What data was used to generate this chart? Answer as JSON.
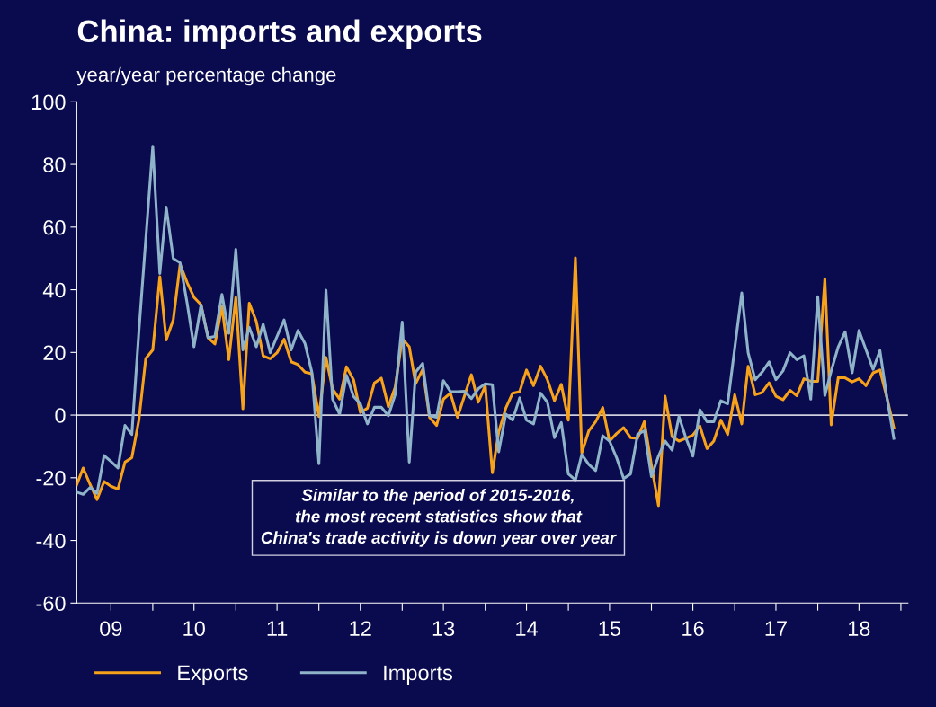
{
  "chart_data": {
    "type": "line",
    "title": "China: imports and exports",
    "ylabel": "year/year percentage change",
    "annotations": [
      "Similar to the period of 2015-2016,\nthe most recent statistics show that\nChina's trade activity is down year over year"
    ],
    "x": [
      "2009-02",
      "2009-03",
      "2009-04",
      "2009-05",
      "2009-06",
      "2009-07",
      "2009-08",
      "2009-09",
      "2009-10",
      "2009-11",
      "2009-12",
      "2010-01",
      "2010-02",
      "2010-03",
      "2010-04",
      "2010-05",
      "2010-06",
      "2010-07",
      "2010-08",
      "2010-09",
      "2010-10",
      "2010-11",
      "2010-12",
      "2011-01",
      "2011-02",
      "2011-03",
      "2011-04",
      "2011-05",
      "2011-06",
      "2011-07",
      "2011-08",
      "2011-09",
      "2011-10",
      "2011-11",
      "2011-12",
      "2012-01",
      "2012-02",
      "2012-03",
      "2012-04",
      "2012-05",
      "2012-06",
      "2012-07",
      "2012-08",
      "2012-09",
      "2012-10",
      "2012-11",
      "2012-12",
      "2013-01",
      "2013-02",
      "2013-03",
      "2013-04",
      "2013-05",
      "2013-06",
      "2013-07",
      "2013-08",
      "2013-09",
      "2013-10",
      "2013-11",
      "2013-12",
      "2014-01",
      "2014-02",
      "2014-03",
      "2014-04",
      "2014-05",
      "2014-06",
      "2014-07",
      "2014-08",
      "2014-09",
      "2014-10",
      "2014-11",
      "2014-12",
      "2015-01",
      "2015-02",
      "2015-03",
      "2015-04",
      "2015-05",
      "2015-06",
      "2015-07",
      "2015-08",
      "2015-09",
      "2015-10",
      "2015-11",
      "2015-12",
      "2016-01",
      "2016-02",
      "2016-03",
      "2016-04",
      "2016-05",
      "2016-06",
      "2016-07",
      "2016-08",
      "2016-09",
      "2016-10",
      "2016-11",
      "2016-12",
      "2017-01",
      "2017-02",
      "2017-03",
      "2017-04",
      "2017-05",
      "2017-06",
      "2017-07",
      "2017-08",
      "2017-09",
      "2017-10",
      "2017-11",
      "2017-12",
      "2018-01",
      "2018-02",
      "2018-03",
      "2018-04",
      "2018-05",
      "2018-06",
      "2018-07",
      "2018-08",
      "2018-09",
      "2018-10",
      "2018-11",
      "2018-12"
    ],
    "series": [
      {
        "name": "Exports",
        "color": "#f7a21b",
        "values": [
          -22.2,
          -16.9,
          -22.2,
          -27.0,
          -21.2,
          -22.7,
          -23.6,
          -15.0,
          -13.6,
          -1.6,
          18.0,
          20.8,
          44.2,
          24.0,
          30.4,
          48.1,
          42.3,
          37.6,
          35.2,
          24.7,
          22.7,
          34.7,
          17.7,
          37.6,
          2.0,
          35.7,
          29.9,
          18.9,
          18.0,
          19.9,
          24.2,
          17.0,
          16.1,
          13.7,
          13.2,
          -0.5,
          18.4,
          8.4,
          5.1,
          15.4,
          11.3,
          0.8,
          2.2,
          10.3,
          11.8,
          2.7,
          8.9,
          24.4,
          21.8,
          10.0,
          14.6,
          -0.7,
          -3.3,
          5.1,
          7.0,
          -0.7,
          6.0,
          12.9,
          4.1,
          9.4,
          -18.4,
          -5.4,
          2.2,
          7.0,
          7.5,
          14.4,
          9.4,
          15.6,
          11.3,
          4.6,
          9.8,
          -1.6,
          50.2,
          -12.1,
          -5.0,
          -2.1,
          2.4,
          -8.3,
          -5.9,
          -4.0,
          -7.2,
          -7.4,
          -2.1,
          -16.0,
          -28.9,
          6.0,
          -6.9,
          -8.3,
          -7.4,
          -6.4,
          -3.5,
          -10.7,
          -8.3,
          -1.6,
          -6.2,
          6.5,
          -2.8,
          15.6,
          6.5,
          7.2,
          10.3,
          6.0,
          4.9,
          7.9,
          6.2,
          11.6,
          10.8,
          10.8,
          43.5,
          -3.1,
          12.0,
          11.9,
          10.6,
          11.6,
          9.4,
          13.5,
          14.4,
          5.5,
          -4.0
        ]
      },
      {
        "name": "Imports",
        "color": "#8fb3c8",
        "values": [
          -24.6,
          -25.3,
          -23.1,
          -25.0,
          -12.9,
          -14.8,
          -16.9,
          -3.3,
          -6.2,
          26.7,
          55.9,
          85.8,
          45.2,
          66.4,
          50.0,
          48.6,
          35.7,
          21.8,
          35.2,
          24.7,
          25.1,
          38.5,
          26.1,
          52.9,
          20.8,
          28.0,
          21.8,
          29.0,
          19.9,
          25.1,
          30.4,
          20.8,
          27.0,
          22.8,
          13.7,
          -15.5,
          39.9,
          5.1,
          0.3,
          12.7,
          6.0,
          3.6,
          -2.8,
          2.5,
          2.5,
          -0.2,
          6.5,
          29.7,
          -15.0,
          13.7,
          16.5,
          -0.2,
          -0.7,
          11.0,
          7.5,
          7.5,
          7.6,
          5.3,
          8.4,
          10.0,
          9.7,
          -11.7,
          0.3,
          -1.6,
          5.5,
          -1.6,
          -2.8,
          7.0,
          4.1,
          -7.2,
          -2.4,
          -18.8,
          -20.7,
          -12.6,
          -15.8,
          -17.7,
          -6.6,
          -8.3,
          -13.6,
          -20.3,
          -18.8,
          -6.2,
          -5.0,
          -19.6,
          -13.1,
          -8.3,
          -11.2,
          -0.5,
          -7.4,
          -13.1,
          1.7,
          -2.1,
          -2.1,
          4.6,
          3.6,
          21.3,
          39.0,
          19.9,
          11.3,
          13.7,
          17.0,
          11.3,
          14.1,
          19.9,
          17.7,
          18.9,
          5.1,
          37.8,
          6.2,
          14.1,
          21.8,
          26.6,
          13.5,
          27.0,
          20.8,
          14.6,
          20.6,
          5.5,
          -7.4
        ]
      }
    ],
    "xlim": [
      "2009-02",
      "2019-02"
    ],
    "xticks": [
      {
        "value": "2009-07",
        "label": "09"
      },
      {
        "value": "2010-01",
        "label": null
      },
      {
        "value": "2010-07",
        "label": "10"
      },
      {
        "value": "2011-01",
        "label": null
      },
      {
        "value": "2011-07",
        "label": "11"
      },
      {
        "value": "2012-01",
        "label": null
      },
      {
        "value": "2012-07",
        "label": "12"
      },
      {
        "value": "2013-01",
        "label": null
      },
      {
        "value": "2013-07",
        "label": "13"
      },
      {
        "value": "2014-01",
        "label": null
      },
      {
        "value": "2014-07",
        "label": "14"
      },
      {
        "value": "2015-01",
        "label": null
      },
      {
        "value": "2015-07",
        "label": "15"
      },
      {
        "value": "2016-01",
        "label": null
      },
      {
        "value": "2016-07",
        "label": "16"
      },
      {
        "value": "2017-01",
        "label": null
      },
      {
        "value": "2017-07",
        "label": "17"
      },
      {
        "value": "2018-01",
        "label": null
      },
      {
        "value": "2018-07",
        "label": "18"
      },
      {
        "value": "2019-01",
        "label": null
      }
    ],
    "ylim": [
      -60,
      100
    ],
    "yticks": [
      -60,
      -40,
      -20,
      0,
      20,
      40,
      60,
      80,
      100
    ],
    "ref_lines": [
      {
        "axis": "y",
        "value": 0,
        "color": "#d0d0e0"
      }
    ],
    "grid": false,
    "legend": "bottom",
    "line_style": "solid",
    "marker": "none"
  }
}
